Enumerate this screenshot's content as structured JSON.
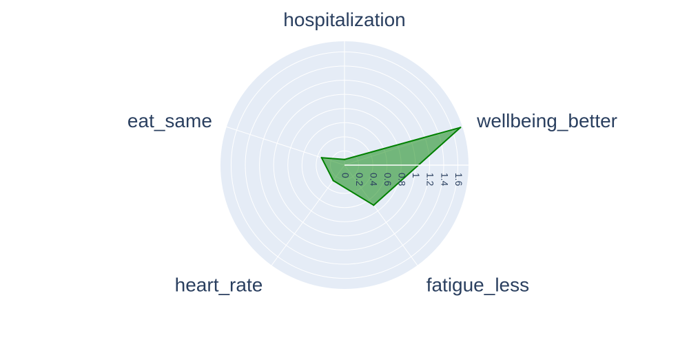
{
  "chart_data": {
    "type": "radar",
    "categories": [
      "hospitalization",
      "wellbeing_better",
      "fatigue_less",
      "heart_rate",
      "eat_same"
    ],
    "series": [
      {
        "values": [
          0.08,
          1.72,
          0.7,
          0.27,
          0.34
        ]
      }
    ],
    "radial_range": [
      0,
      1.75
    ],
    "radial_ticks": [
      "0",
      "0.2",
      "0.4",
      "0.6",
      "0.8",
      "1",
      "1.2",
      "1.4",
      "1.6"
    ],
    "radial_tick_values": [
      0,
      0.2,
      0.4,
      0.6,
      0.8,
      1.0,
      1.2,
      1.4,
      1.6
    ],
    "grid": true,
    "colors": {
      "background": "#e5ecf6",
      "grid": "#ffffff",
      "line": "#008000",
      "fill": "rgba(0,128,0,0.5)",
      "text": "#2a3f5f"
    }
  }
}
